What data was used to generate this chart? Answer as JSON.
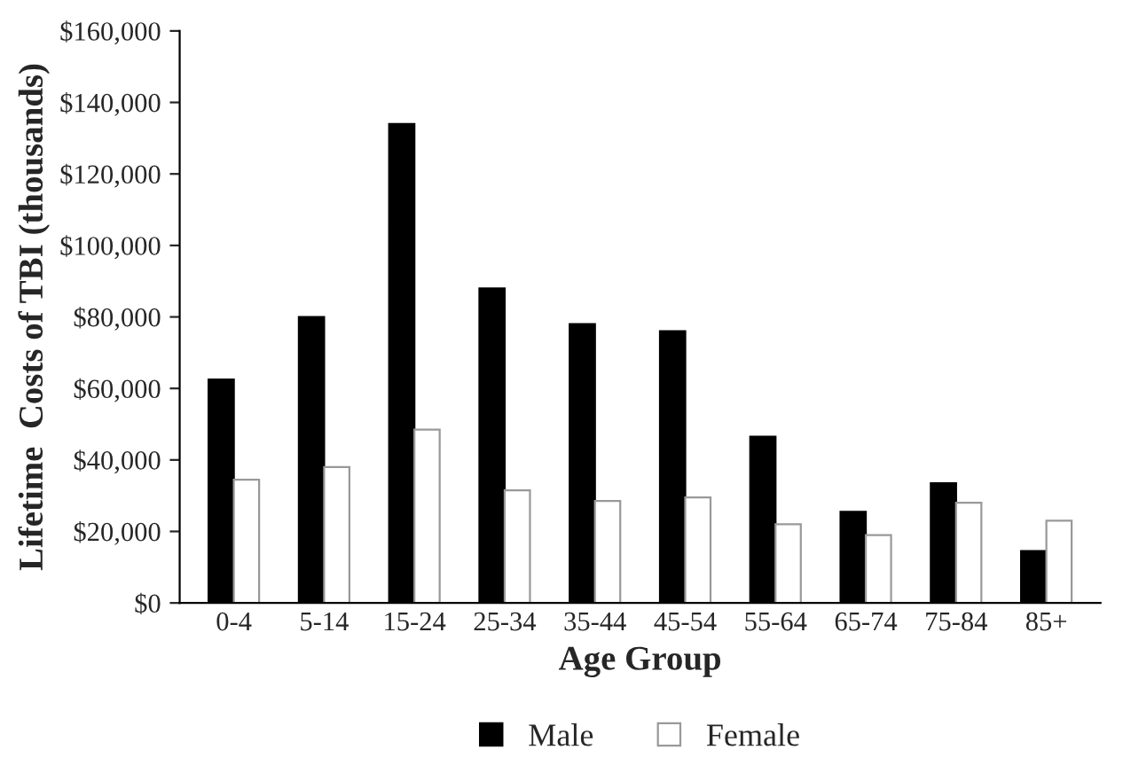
{
  "chart_data": {
    "type": "bar",
    "xlabel": "Age Group",
    "ylabel": "Lifetime  Costs of TBI (thousands)",
    "categories": [
      "0-4",
      "5-14",
      "15-24",
      "25-34",
      "35-44",
      "45-54",
      "55-64",
      "65-74",
      "75-84",
      "85+"
    ],
    "series": [
      {
        "name": "Male",
        "color": "#000000",
        "values": [
          62500,
          80000,
          134000,
          88000,
          78000,
          76000,
          46500,
          25500,
          33500,
          14500
        ]
      },
      {
        "name": "Female",
        "color": "#ffffff",
        "values": [
          34500,
          38000,
          48500,
          31500,
          28500,
          29500,
          22000,
          19000,
          28000,
          23000
        ]
      }
    ],
    "ylim": [
      0,
      160000
    ],
    "yticks": [
      {
        "value": 0,
        "label": "$0"
      },
      {
        "value": 20000,
        "label": "$20,000"
      },
      {
        "value": 40000,
        "label": "$40,000"
      },
      {
        "value": 60000,
        "label": "$60,000"
      },
      {
        "value": 80000,
        "label": "$80,000"
      },
      {
        "value": 100000,
        "label": "$100,000"
      },
      {
        "value": 120000,
        "label": "$120,000"
      },
      {
        "value": 140000,
        "label": "$140,000"
      },
      {
        "value": 160000,
        "label": "$160,000"
      }
    ],
    "grid": false,
    "legend": "bottom"
  }
}
